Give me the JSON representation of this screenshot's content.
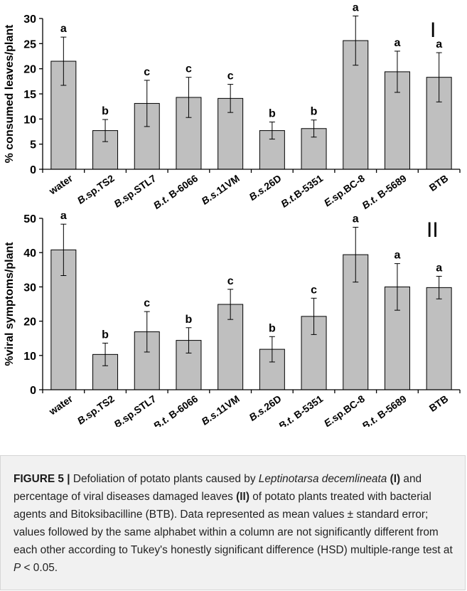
{
  "chart_data": [
    {
      "type": "bar",
      "panel_label": "I",
      "ylabel": "% consumed leaves/plant",
      "ylim": [
        0,
        30
      ],
      "yticks": [
        0,
        5,
        10,
        15,
        20,
        25,
        30
      ],
      "categories": [
        {
          "genus": "",
          "rest": "water"
        },
        {
          "genus": "B.",
          "rest": "sp.TS2"
        },
        {
          "genus": "B.",
          "rest": "sp.STL7"
        },
        {
          "genus": "B.t.",
          "rest": " B-6066"
        },
        {
          "genus": "B.s.",
          "rest": "11VM"
        },
        {
          "genus": "B.s.",
          "rest": "26D"
        },
        {
          "genus": "B.t.",
          "rest": "B-5351"
        },
        {
          "genus": "E.",
          "rest": "sp.BC-8"
        },
        {
          "genus": "B.t.",
          "rest": " B-5689"
        },
        {
          "genus": "",
          "rest": "BTB"
        }
      ],
      "values": [
        21.5,
        7.7,
        13.1,
        14.3,
        14.1,
        7.7,
        8.1,
        25.6,
        19.4,
        18.3
      ],
      "errors": [
        4.8,
        2.2,
        4.6,
        4.0,
        2.8,
        1.7,
        1.7,
        4.9,
        4.1,
        4.9
      ],
      "letters": [
        "a",
        "b",
        "c",
        "c",
        "c",
        "b",
        "b",
        "a",
        "a",
        "a"
      ],
      "bar_color": "#bfbfbf",
      "grid": false
    },
    {
      "type": "bar",
      "panel_label": "II",
      "ylabel": "%viral symptoms/plant",
      "ylim": [
        0,
        50
      ],
      "yticks": [
        0,
        10,
        20,
        30,
        40,
        50
      ],
      "categories": [
        {
          "genus": "",
          "rest": "water"
        },
        {
          "genus": "B.",
          "rest": "sp.TS2"
        },
        {
          "genus": "B.",
          "rest": "sp.STL7"
        },
        {
          "genus": "B.t.",
          "rest": " B-6066"
        },
        {
          "genus": "B.s.",
          "rest": "11VM"
        },
        {
          "genus": "B.s.",
          "rest": "26D"
        },
        {
          "genus": "B.t.",
          "rest": " B-5351"
        },
        {
          "genus": "E.",
          "rest": "sp.BC-8"
        },
        {
          "genus": "B.t.",
          "rest": " B-5689"
        },
        {
          "genus": "",
          "rest": "BTB"
        }
      ],
      "values": [
        40.8,
        10.3,
        16.9,
        14.4,
        24.9,
        11.8,
        21.4,
        39.4,
        30.0,
        29.8
      ],
      "errors": [
        7.5,
        3.3,
        5.9,
        3.7,
        4.4,
        3.7,
        5.3,
        8.0,
        6.8,
        3.3
      ],
      "letters": [
        "a",
        "b",
        "c",
        "b",
        "c",
        "b",
        "c",
        "a",
        "a",
        "a"
      ],
      "bar_color": "#bfbfbf",
      "grid": false
    }
  ],
  "caption": {
    "label": "FIGURE 5 |",
    "t1": " Defoliation of potato plants caused by ",
    "species": "Leptinotarsa decemlineata",
    "ref1": "(I)",
    "t2": " and percentage of viral diseases damaged leaves ",
    "ref2": "(II)",
    "t3": " of potato plants treated with bacterial agents and Bitoksibacilline (BTB). Data represented as mean values ± standard error; values followed by the same alphabet within a column are not significantly different from each other according to Tukey's honestly significant difference (HSD) multiple-range test at ",
    "p": "P",
    "t4": " < 0.05."
  }
}
